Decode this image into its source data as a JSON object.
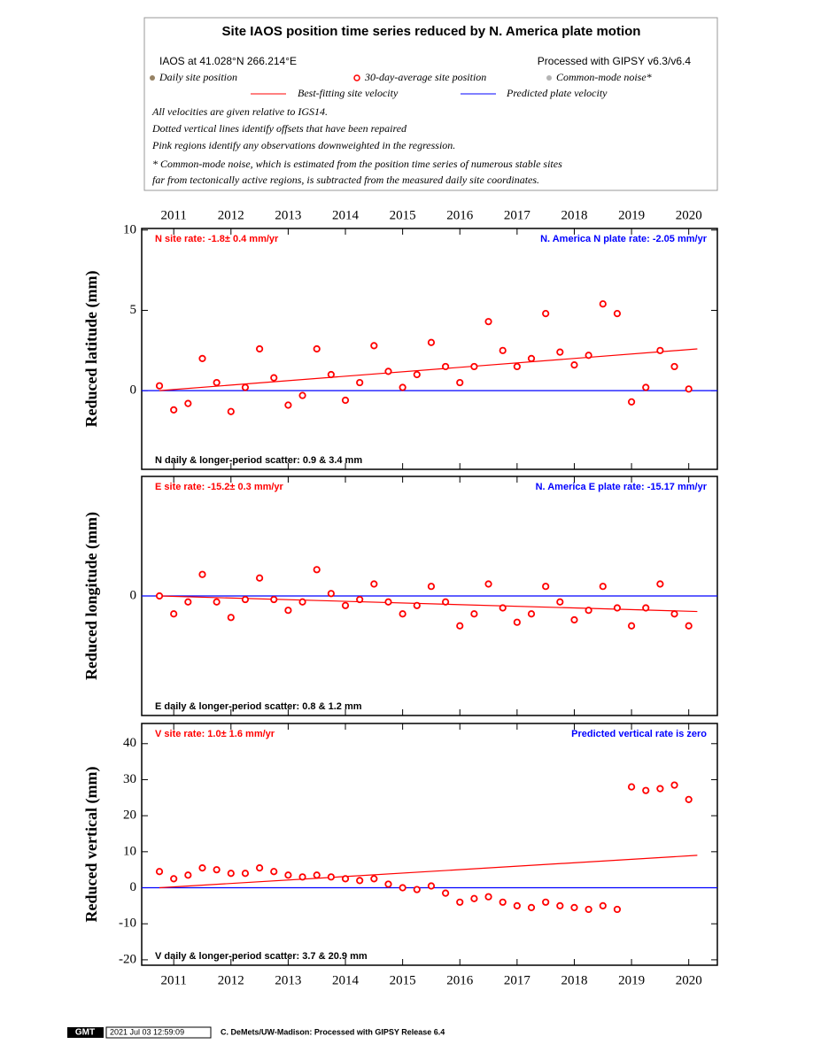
{
  "header": {
    "title": "Site IAOS position time series reduced by N. America plate motion",
    "location": "IAOS at 41.028°N 266.214°E",
    "processing": "Processed with GIPSY v6.3/v6.4",
    "legend": [
      {
        "name": "Daily site position",
        "color": "#968264",
        "marker": "dot"
      },
      {
        "name": "30-day-average site position",
        "color": "#ff0000",
        "marker": "circle"
      },
      {
        "name": "Common-mode noise*",
        "color": "#b4b4b4",
        "marker": "dot"
      },
      {
        "name": "Best-fitting site velocity",
        "color": "#ff0000",
        "marker": "line"
      },
      {
        "name": "Predicted plate velocity",
        "color": "#0000ff",
        "marker": "line"
      }
    ],
    "notes": [
      "All velocities are given relative to IGS14.",
      "Dotted vertical lines identify offsets that have been repaired",
      "Pink regions identify any observations downweighted in the regression.",
      "* Common-mode noise, which is estimated from the position time series of numerous stable sites",
      "far from tectonically active regions, is subtracted from the measured daily site coordinates."
    ]
  },
  "chart_data": [
    {
      "type": "scatter",
      "ylabel": "Reduced latitude (mm)",
      "site_rate": "N site rate:  -1.8± 0.4 mm/yr",
      "plate_rate": "N. America N plate rate: -2.05 mm/yr",
      "scatter": "N daily & longer-period scatter:   0.9 &   3.4 mm",
      "xlim": [
        2010.44,
        2020.5
      ],
      "xticks": [
        2011,
        2012,
        2013,
        2014,
        2015,
        2016,
        2017,
        2018,
        2019,
        2020
      ],
      "ylim": [
        -4.9,
        10.1
      ],
      "yticks": [
        0,
        5,
        10
      ],
      "x": [
        2010.75,
        2011,
        2011.25,
        2011.5,
        2011.75,
        2012,
        2012.25,
        2012.5,
        2012.75,
        2013,
        2013.25,
        2013.5,
        2013.75,
        2014,
        2014.25,
        2014.5,
        2014.75,
        2015,
        2015.25,
        2015.5,
        2015.75,
        2016,
        2016.25,
        2016.5,
        2016.75,
        2017,
        2017.25,
        2017.5,
        2017.75,
        2018,
        2018.25,
        2018.5,
        2018.75,
        2019,
        2019.25,
        2019.5,
        2019.75,
        2020
      ],
      "series": [
        {
          "color": "#ff0000",
          "values": [
            0.3,
            -1.2,
            -0.8,
            2.0,
            0.5,
            -1.3,
            0.2,
            2.6,
            0.8,
            -0.9,
            -0.3,
            2.6,
            1.0,
            -0.6,
            0.5,
            2.8,
            1.2,
            0.2,
            1.0,
            3.0,
            1.5,
            0.5,
            1.5,
            4.3,
            2.5,
            1.5,
            2.0,
            4.8,
            2.4,
            1.6,
            2.2,
            5.4,
            4.8,
            -0.7,
            0.2,
            2.5,
            1.5,
            0.1
          ]
        }
      ],
      "fit": {
        "x": [
          2010.75,
          2020.15
        ],
        "values": [
          0,
          2.6
        ],
        "color": "#ff0000"
      },
      "plate": {
        "value": 0,
        "color": "#0000ff"
      }
    },
    {
      "type": "scatter",
      "ylabel": "Reduced longitude (mm)",
      "site_rate": "E site rate: -15.2± 0.3 mm/yr",
      "plate_rate": "N. America E plate rate: -15.17 mm/yr",
      "scatter": "E daily & longer-period scatter:   0.8 &   1.2 mm",
      "xlim": [
        2010.44,
        2020.5
      ],
      "xticks": [
        2011,
        2012,
        2013,
        2014,
        2015,
        2016,
        2017,
        2018,
        2019,
        2020
      ],
      "ylim": [
        -10,
        10
      ],
      "yticks": [
        0
      ],
      "x": [
        2010.75,
        2011,
        2011.25,
        2011.5,
        2011.75,
        2012,
        2012.25,
        2012.5,
        2012.75,
        2013,
        2013.25,
        2013.5,
        2013.75,
        2014,
        2014.25,
        2014.5,
        2014.75,
        2015,
        2015.25,
        2015.5,
        2015.75,
        2016,
        2016.25,
        2016.5,
        2016.75,
        2017,
        2017.25,
        2017.5,
        2017.75,
        2018,
        2018.25,
        2018.5,
        2018.75,
        2019,
        2019.25,
        2019.5,
        2019.75,
        2020
      ],
      "series": [
        {
          "color": "#ff0000",
          "values": [
            0,
            -1.5,
            -0.5,
            1.8,
            -0.5,
            -1.8,
            -0.3,
            1.5,
            -0.3,
            -1.2,
            -0.5,
            2.2,
            0.2,
            -0.8,
            -0.3,
            1.0,
            -0.5,
            -1.5,
            -0.8,
            0.8,
            -0.5,
            -2.5,
            -1.5,
            1.0,
            -1.0,
            -2.2,
            -1.5,
            0.8,
            -0.5,
            -2.0,
            -1.2,
            0.8,
            -1.0,
            -2.5,
            -1.0,
            1.0,
            -1.5,
            -2.5
          ]
        }
      ],
      "fit": {
        "x": [
          2010.75,
          2020.15
        ],
        "values": [
          0,
          -1.3
        ],
        "color": "#ff0000"
      },
      "plate": {
        "value": 0,
        "color": "#0000ff"
      }
    },
    {
      "type": "scatter",
      "ylabel": "Reduced vertical (mm)",
      "site_rate": "V site rate:   1.0± 1.6 mm/yr",
      "plate_rate": "Predicted vertical rate is zero",
      "scatter": "V daily & longer-period scatter:   3.7 &  20.9 mm",
      "xlim": [
        2010.44,
        2020.5
      ],
      "xticks": [
        2011,
        2012,
        2013,
        2014,
        2015,
        2016,
        2017,
        2018,
        2019,
        2020
      ],
      "ylim": [
        -21.5,
        45.6
      ],
      "yticks": [
        -20,
        -10,
        0,
        10,
        20,
        30,
        40
      ],
      "x": [
        2010.75,
        2011,
        2011.25,
        2011.5,
        2011.75,
        2012,
        2012.25,
        2012.5,
        2012.75,
        2013,
        2013.25,
        2013.5,
        2013.75,
        2014,
        2014.25,
        2014.5,
        2014.75,
        2015,
        2015.25,
        2015.5,
        2015.75,
        2016,
        2016.25,
        2016.5,
        2016.75,
        2017,
        2017.25,
        2017.5,
        2017.75,
        2018,
        2018.25,
        2018.5,
        2018.75,
        2019,
        2019.25,
        2019.5,
        2019.75,
        2020
      ],
      "series": [
        {
          "color": "#ff0000",
          "values": [
            4.5,
            2.5,
            3.5,
            5.5,
            5.0,
            4.0,
            4.0,
            5.5,
            4.5,
            3.5,
            3.0,
            3.5,
            3.0,
            2.5,
            2.0,
            2.5,
            1.0,
            0.0,
            -0.5,
            0.5,
            -1.5,
            -4.0,
            -3.0,
            -2.5,
            -4.0,
            -5.0,
            -5.5,
            -4.0,
            -5.0,
            -5.5,
            -6.0,
            -5.0,
            -6.0,
            28.0,
            27.0,
            27.5,
            28.5,
            24.5
          ]
        }
      ],
      "fit": {
        "x": [
          2010.75,
          2020.15
        ],
        "values": [
          0,
          9
        ],
        "color": "#ff0000"
      },
      "plate": {
        "value": 0,
        "color": "#0000ff"
      }
    }
  ],
  "footer": {
    "logo": "GMT",
    "timestamp": "2021 Jul 03 12:59:09",
    "credit": "C. DeMets/UW-Madison: Processed with GIPSY Release 6.4"
  }
}
